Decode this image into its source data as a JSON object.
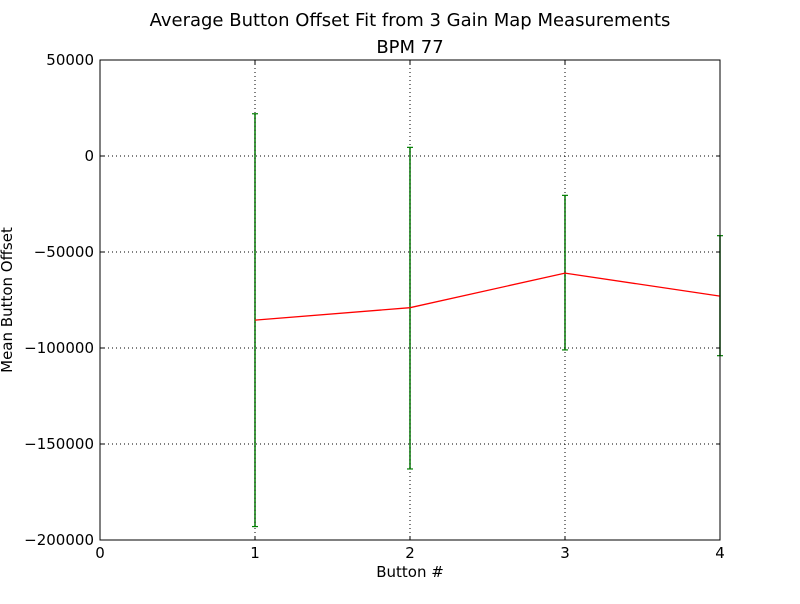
{
  "chart_data": {
    "type": "line",
    "title": "Average Button Offset Fit from 3 Gain Map Measurements",
    "subtitle": "BPM 77",
    "xlabel": "Button #",
    "ylabel": "Mean Button Offset",
    "xlim": [
      0,
      4
    ],
    "ylim": [
      -200000,
      50000
    ],
    "x_ticks": [
      0,
      1,
      2,
      3,
      4
    ],
    "y_ticks": [
      -200000,
      -150000,
      -100000,
      -50000,
      0,
      50000
    ],
    "x_tick_labels": [
      "0",
      "1",
      "2",
      "3",
      "4"
    ],
    "y_tick_labels": [
      "−200000",
      "−150000",
      "−100000",
      "−50000",
      "0",
      "50000"
    ],
    "grid": true,
    "series": [
      {
        "x": [
          1,
          2,
          3,
          4
        ],
        "y": [
          -85500,
          -79000,
          -61000,
          -73000
        ],
        "yerr_lower": [
          -193000,
          -163000,
          -101000,
          -104000
        ],
        "yerr_upper": [
          22000,
          4500,
          -20500,
          -41500
        ],
        "line_color": "#ff0000",
        "errorbar_color": "#008000"
      }
    ]
  }
}
